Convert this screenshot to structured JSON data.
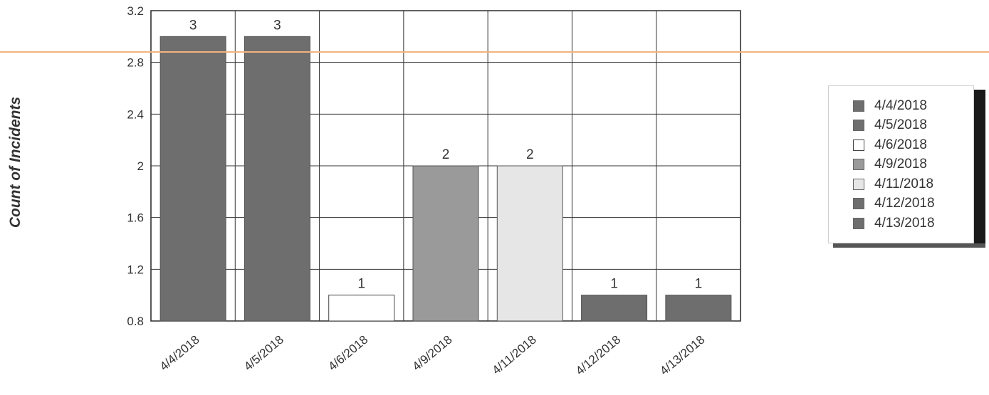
{
  "chart_data": {
    "type": "bar",
    "ylabel": "Count of Incidents",
    "ylim": [
      0.8,
      3.2
    ],
    "yticks": [
      "0.8",
      "1.2",
      "1.6",
      "2",
      "2.4",
      "2.8",
      "3.2"
    ],
    "categories": [
      "4/4/2018",
      "4/5/2018",
      "4/6/2018",
      "4/9/2018",
      "4/11/2018",
      "4/12/2018",
      "4/13/2018"
    ],
    "values": [
      3,
      3,
      1,
      2,
      2,
      1,
      1
    ],
    "data_labels": [
      "3",
      "3",
      "1",
      "2",
      "2",
      "1",
      "1"
    ],
    "colors": [
      "#6e6e6e",
      "#6e6e6e",
      "#ffffff",
      "#9a9a9a",
      "#e6e6e6",
      "#6e6e6e",
      "#6e6e6e"
    ],
    "grid": true,
    "legend_position": "right",
    "legend": [
      "4/4/2018",
      "4/5/2018",
      "4/6/2018",
      "4/9/2018",
      "4/11/2018",
      "4/12/2018",
      "4/13/2018"
    ]
  }
}
